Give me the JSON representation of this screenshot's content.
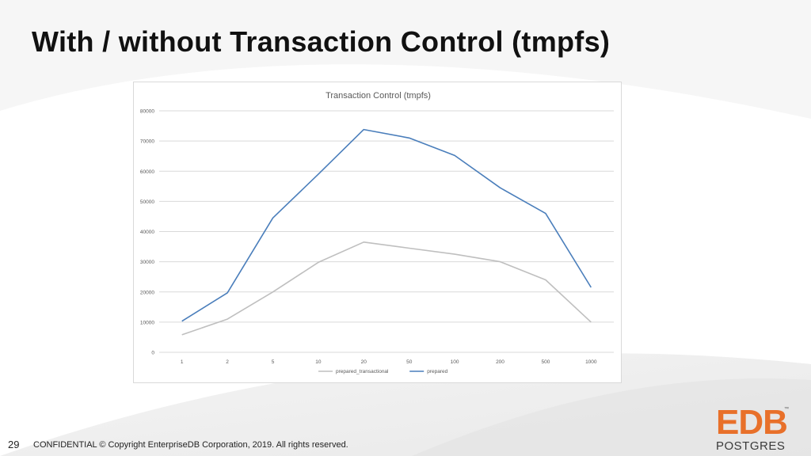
{
  "slide": {
    "title": "With / without Transaction Control (tmpfs)",
    "page_number": "29",
    "footer": "CONFIDENTIAL © Copyright EnterpriseDB Corporation, 2019. All rights reserved."
  },
  "logo": {
    "brand": "EDB",
    "trademark": "™",
    "product": "POSTGRES"
  },
  "colors": {
    "prepared": "#4a7ebb",
    "prepared_transactional": "#bfbfbf",
    "gridline": "#d9d9d9",
    "logo_orange": "#e8702a"
  },
  "chart_data": {
    "type": "line",
    "title": "Transaction Control (tmpfs)",
    "xlabel": "",
    "ylabel": "",
    "categories": [
      "1",
      "2",
      "5",
      "10",
      "20",
      "50",
      "100",
      "200",
      "500",
      "1000"
    ],
    "ylim": [
      0,
      80000
    ],
    "yticks": [
      0,
      10000,
      20000,
      30000,
      40000,
      50000,
      60000,
      70000,
      80000
    ],
    "grid": true,
    "legend": "bottom",
    "series": [
      {
        "name": "prepared_transactional",
        "color": "#bfbfbf",
        "values": [
          5800,
          11000,
          20000,
          29800,
          36500,
          34500,
          32500,
          30000,
          24000,
          10000
        ]
      },
      {
        "name": "prepared",
        "color": "#4a7ebb",
        "values": [
          10300,
          19700,
          44500,
          59000,
          73800,
          71000,
          65200,
          54500,
          46000,
          21500
        ]
      }
    ]
  }
}
